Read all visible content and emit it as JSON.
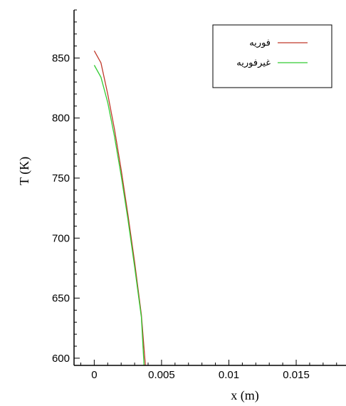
{
  "chart_data": {
    "type": "line",
    "title": "",
    "xlabel": "x (m)",
    "ylabel": "T (K)",
    "xlim": [
      -0.0015,
      0.0187
    ],
    "ylim": [
      594,
      890
    ],
    "x_ticks": [
      0,
      0.005,
      0.01,
      0.015
    ],
    "x_tick_labels": [
      "0",
      "0.005",
      "0.01",
      "0.015"
    ],
    "y_ticks": [
      600,
      650,
      700,
      750,
      800,
      850
    ],
    "y_tick_labels": [
      "600",
      "650",
      "700",
      "750",
      "800",
      "850"
    ],
    "legend_position": "top-right",
    "grid": false,
    "series": [
      {
        "name": "فوریه",
        "color": "#c0392b",
        "x": [
          0,
          0.0005,
          0.001,
          0.0015,
          0.002,
          0.0025,
          0.003,
          0.0035,
          0.0038
        ],
        "y": [
          856,
          846,
          820,
          791,
          757,
          720,
          680,
          636,
          594
        ]
      },
      {
        "name": "غیرفوریه",
        "color": "#33cc33",
        "x": [
          0,
          0.0005,
          0.001,
          0.0015,
          0.002,
          0.0025,
          0.003,
          0.0035,
          0.0037
        ],
        "y": [
          844,
          834,
          813,
          785,
          752,
          716,
          676,
          634,
          594
        ]
      }
    ]
  }
}
